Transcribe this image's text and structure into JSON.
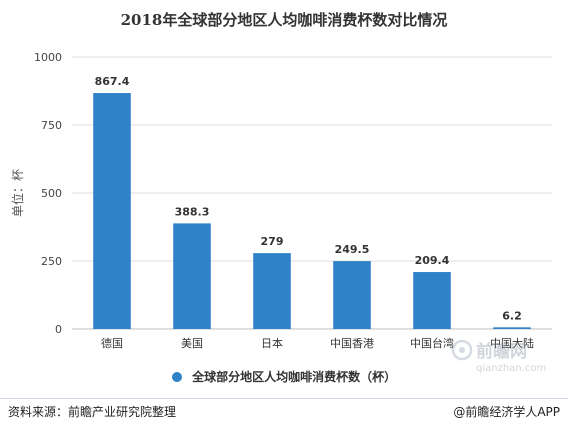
{
  "chart_data": {
    "type": "bar",
    "title": "2018年全球部分地区人均咖啡消费杯数对比情况",
    "ylabel": "单位：杯",
    "categories": [
      "德国",
      "美国",
      "日本",
      "中国香港",
      "中国台湾",
      "中国大陆"
    ],
    "series": [
      {
        "name": "全球部分地区人均咖啡消费杯数（杯）",
        "values": [
          867.4,
          388.3,
          279,
          249.5,
          209.4,
          6.2
        ]
      }
    ],
    "data_labels": [
      "867.4",
      "388.3",
      "279",
      "249.5",
      "209.4",
      "6.2"
    ],
    "ylim": [
      0,
      1000
    ],
    "yticks": [
      0,
      250,
      500,
      750,
      1000
    ],
    "grid": true,
    "legend_position": "bottom",
    "bar_color": "#2f81c8"
  },
  "watermark": {
    "logo_text": "前瞻网",
    "url_text": "qianzhan.com"
  },
  "footer": {
    "source": "资料来源：前瞻产业研究院整理",
    "brand": "@前瞻经济学人APP"
  }
}
